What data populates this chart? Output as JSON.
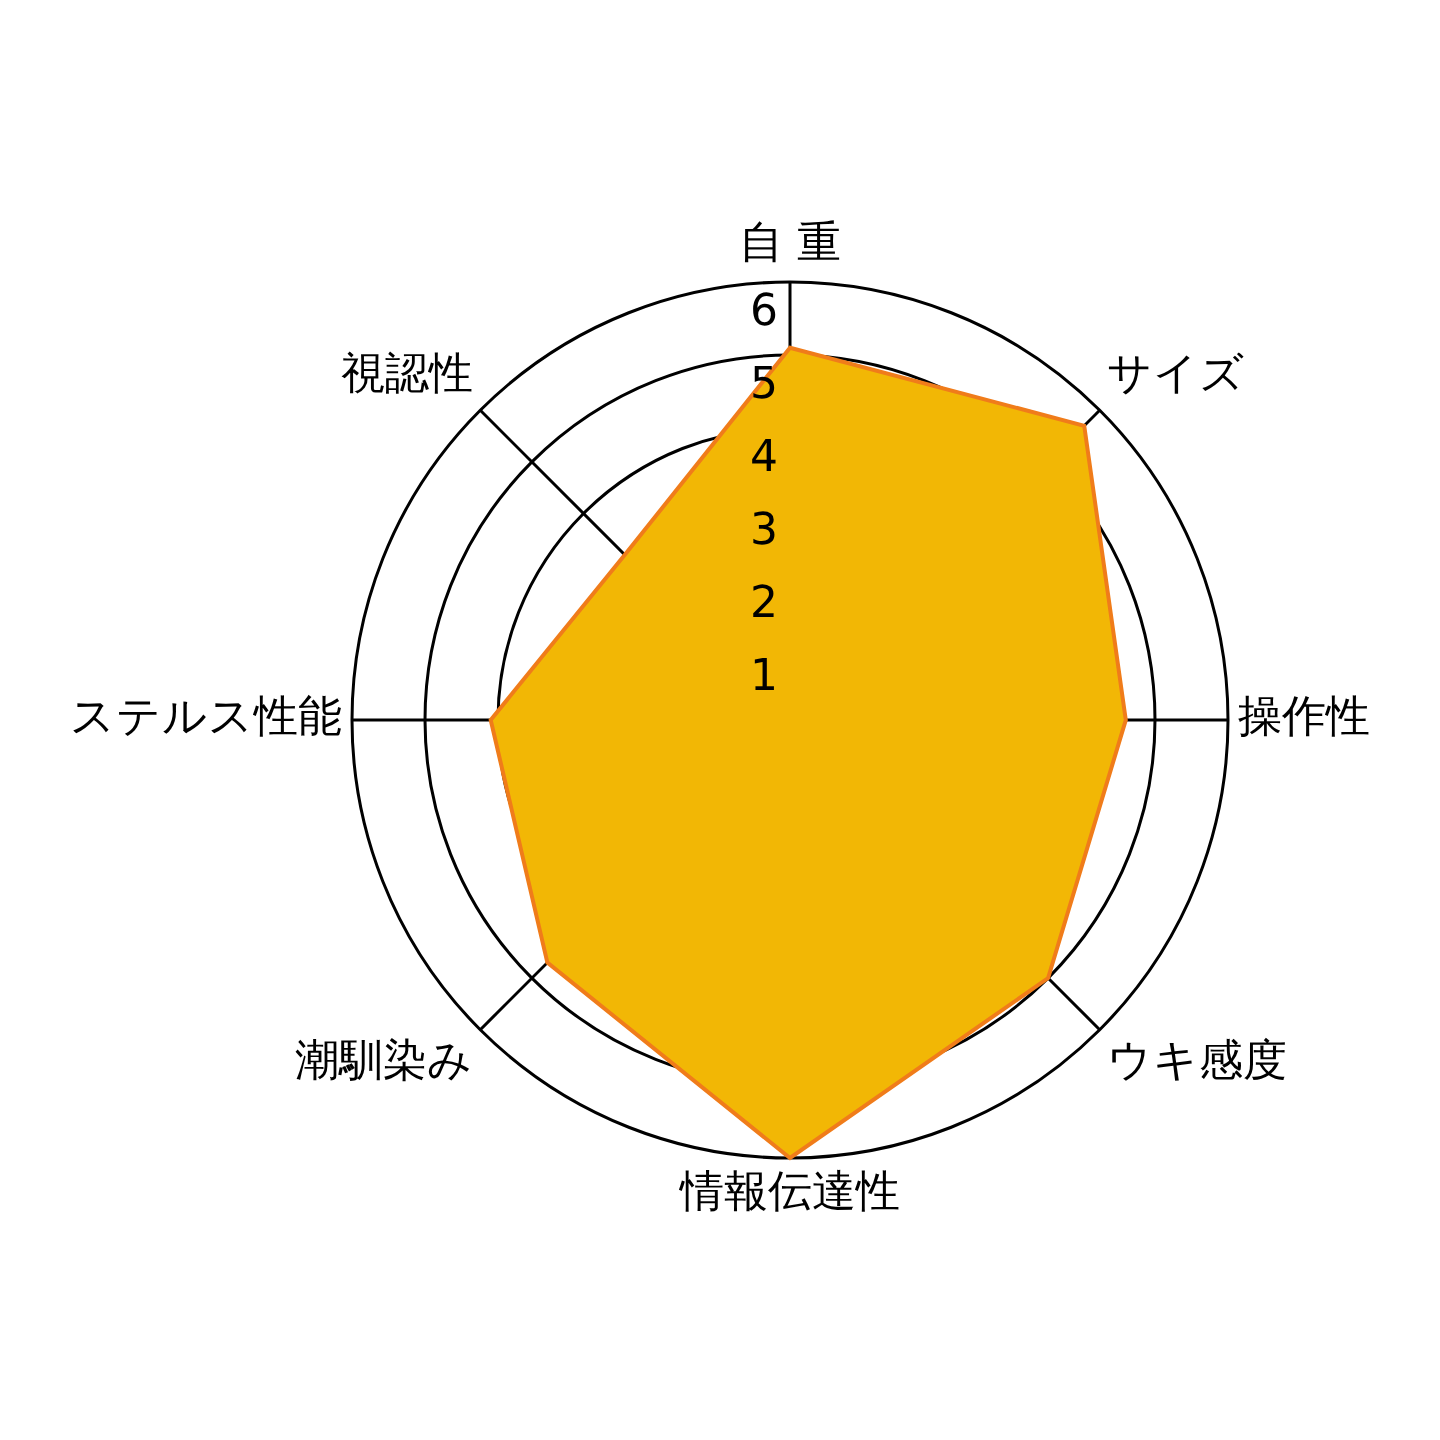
{
  "chart_data": {
    "type": "radar",
    "categories": [
      "自 重",
      "サイズ",
      "操作性",
      "ウキ感度",
      "情報伝達性",
      "潮馴染み",
      "ステルス性能",
      "視認性"
    ],
    "series": [
      {
        "color": "#f2b705",
        "values": [
          5.1,
          5.7,
          4.6,
          5.0,
          6.0,
          4.7,
          4.1,
          3.2
        ]
      }
    ],
    "ylim": [
      0,
      6
    ],
    "yticks": [
      1,
      2,
      3,
      4,
      5,
      6
    ],
    "grid": true,
    "legend": false,
    "marker": "none"
  }
}
